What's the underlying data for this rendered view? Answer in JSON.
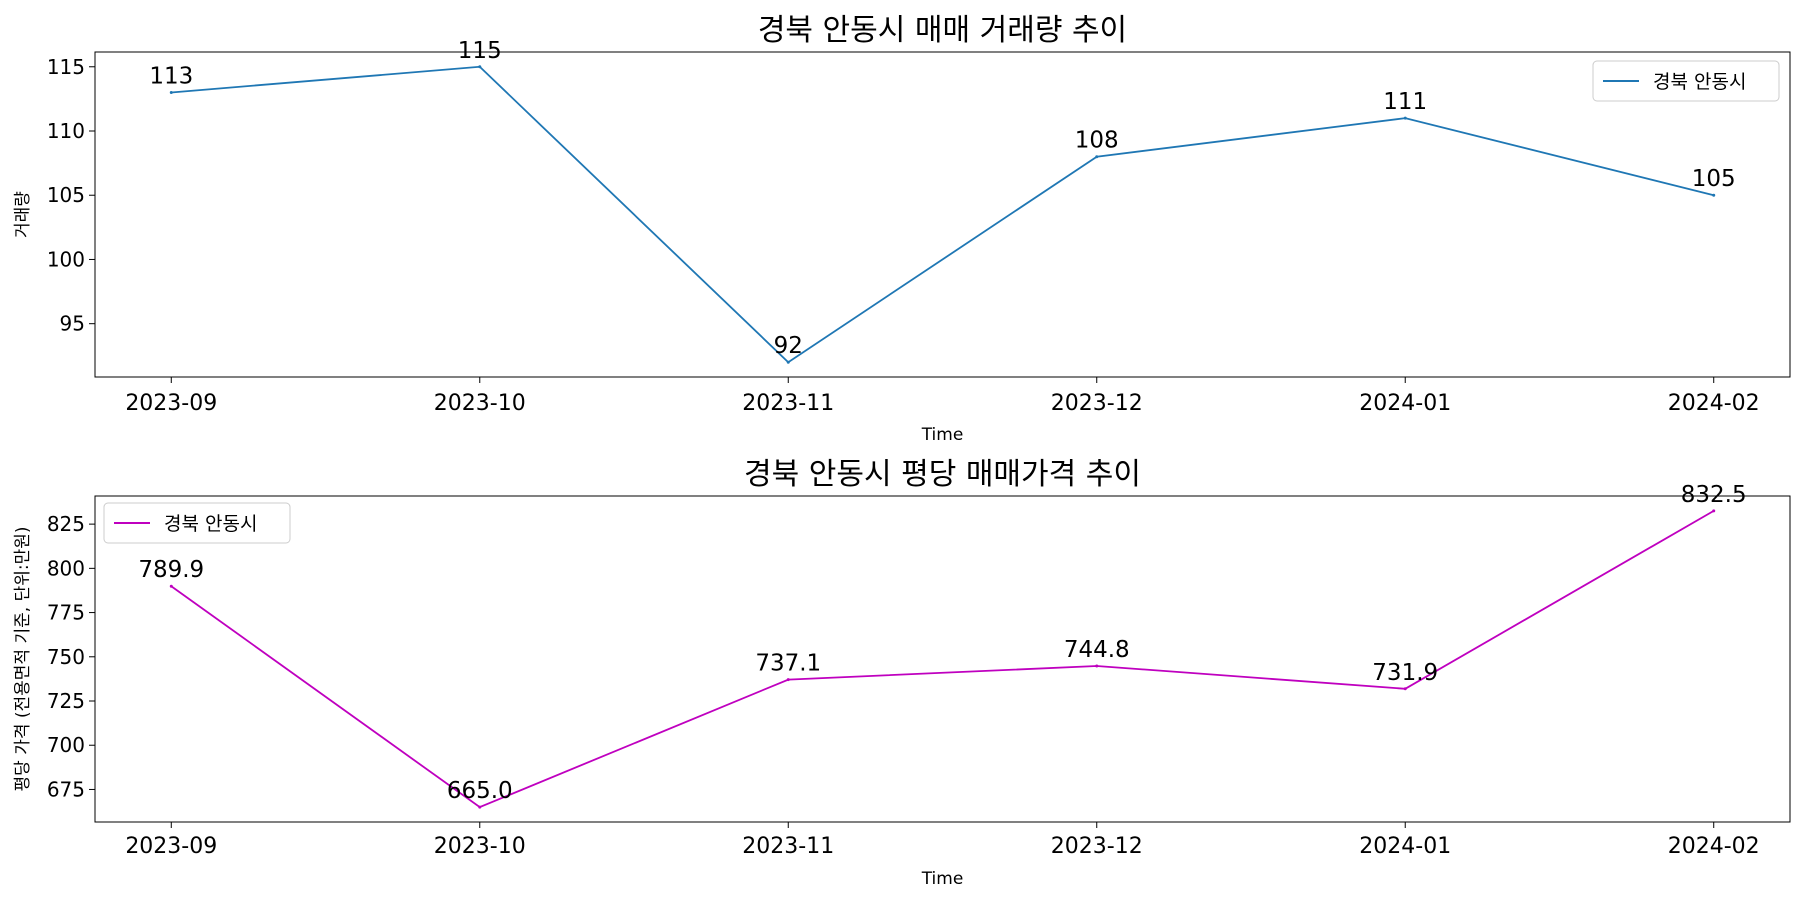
{
  "chart_data": [
    {
      "type": "line",
      "title": "경북 안동시 매매 거래량 추이",
      "xlabel": "Time",
      "ylabel": "거래량",
      "categories": [
        "2023-09",
        "2023-10",
        "2023-11",
        "2023-12",
        "2024-01",
        "2024-02"
      ],
      "series": [
        {
          "name": "경북 안동시",
          "color": "#1f77b4",
          "values": [
            113,
            115,
            92,
            108,
            111,
            105
          ],
          "labels": [
            "113",
            "115",
            "92",
            "108",
            "111",
            "105"
          ]
        }
      ],
      "ylim": [
        90.85,
        116.15
      ],
      "yticks": [
        95,
        100,
        105,
        110,
        115
      ],
      "legend": "upper right",
      "grid": false
    },
    {
      "type": "line",
      "title": "경북 안동시 평당 매매가격 추이",
      "xlabel": "Time",
      "ylabel": "평당 가격 (전용면적 기준, 단위:만원)",
      "categories": [
        "2023-09",
        "2023-10",
        "2023-11",
        "2023-12",
        "2024-01",
        "2024-02"
      ],
      "series": [
        {
          "name": "경북 안동시",
          "color": "#bf00bf",
          "values": [
            789.9,
            665.0,
            737.1,
            744.8,
            731.9,
            832.5
          ],
          "labels": [
            "789.9",
            "665.0",
            "737.1",
            "744.8",
            "731.9",
            "832.5"
          ]
        }
      ],
      "ylim": [
        656.6,
        840.9
      ],
      "yticks": [
        675,
        700,
        725,
        750,
        775,
        800,
        825
      ],
      "legend": "upper left",
      "grid": false
    }
  ]
}
